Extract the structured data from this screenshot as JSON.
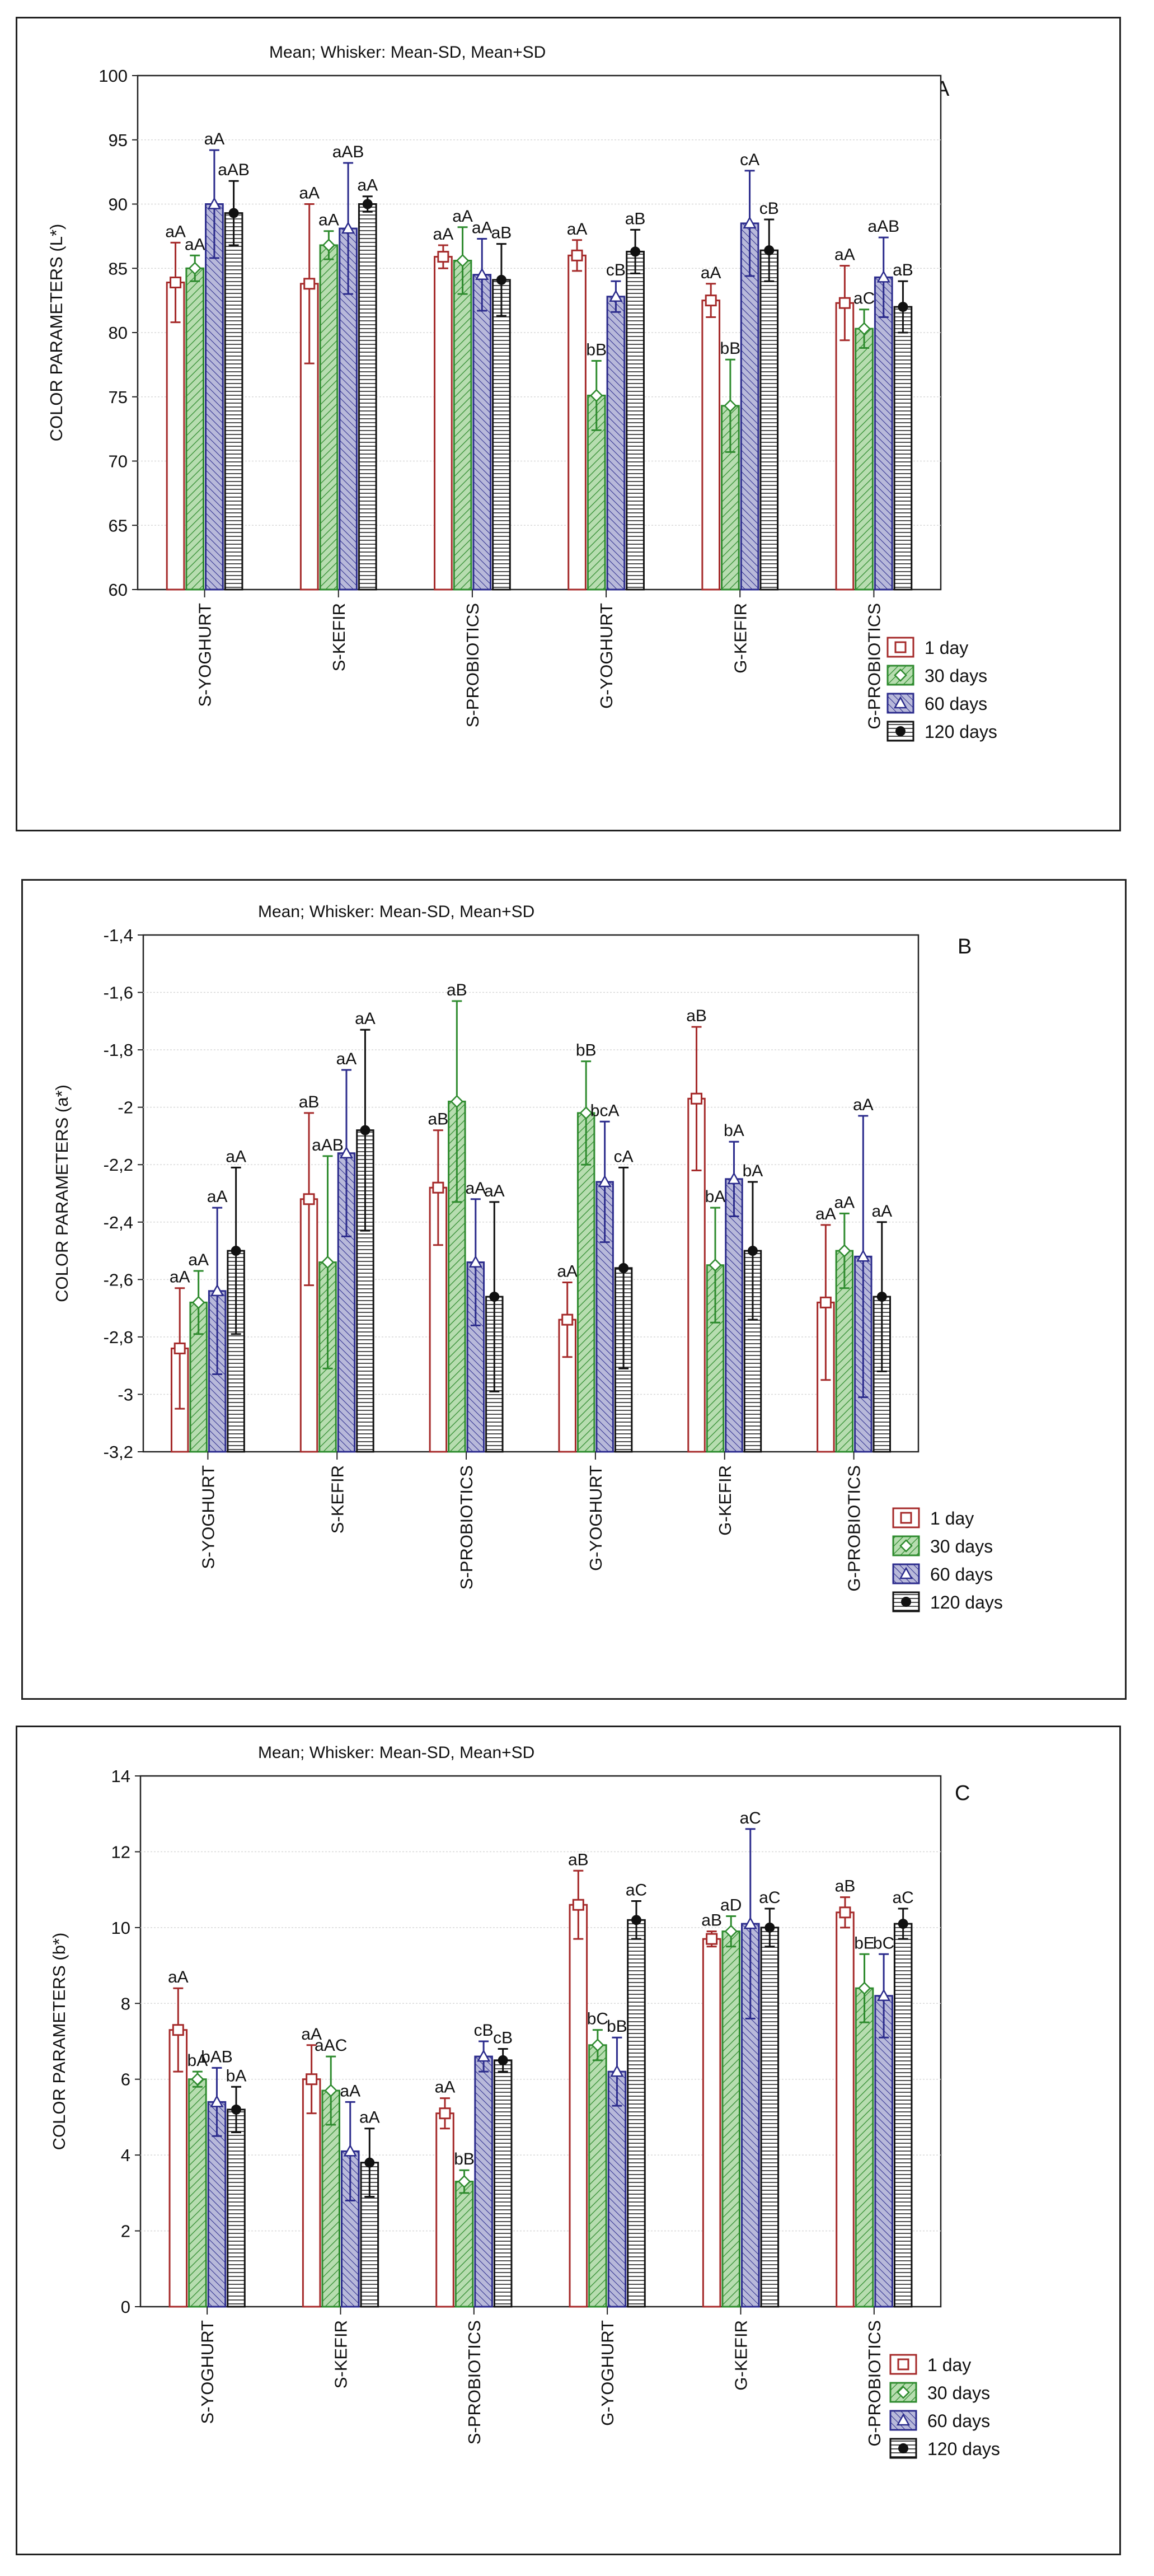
{
  "legend_labels": [
    "1 day",
    "30 days",
    "60 days",
    "120 days"
  ],
  "series_colors": [
    "#a52a2a",
    "#2e8b2e",
    "#2b2b8c",
    "#111111"
  ],
  "fill_colors": [
    "#ffffff",
    "#b7ddb0",
    "#b8b9da",
    "#ffffff"
  ],
  "chart_data": [
    {
      "type": "bar",
      "title": "Mean;  Whisker: Mean-SD, Mean+SD",
      "panel_label": "A",
      "ylabel": "COLOR PARAMETERS  (L*)",
      "ylim": [
        60,
        100
      ],
      "yticks": [
        "60",
        "65",
        "70",
        "75",
        "80",
        "85",
        "90",
        "95",
        "100"
      ],
      "categories": [
        "S-YOGHURT",
        "S-KEFIR",
        "S-PROBIOTICS",
        "G-YOGHURT",
        "G-KEFIR",
        "G-PROBIOTICS"
      ],
      "grid": true,
      "legend_position": "bottom-right",
      "series": [
        {
          "name": "1 day",
          "values": [
            83.9,
            83.8,
            85.9,
            86.0,
            82.5,
            82.3
          ],
          "sd": [
            3.1,
            6.2,
            0.9,
            1.2,
            1.3,
            2.9
          ],
          "labels": [
            "aA",
            "aA",
            "aA",
            "aA",
            "aA",
            "aA"
          ]
        },
        {
          "name": "30 days",
          "values": [
            85.0,
            86.8,
            85.6,
            75.1,
            74.3,
            80.3
          ],
          "sd": [
            1.0,
            1.1,
            2.6,
            2.7,
            3.6,
            1.5
          ],
          "labels": [
            "aA",
            "aA",
            "aA",
            "bB",
            "bB",
            "aC"
          ]
        },
        {
          "name": "60 days",
          "values": [
            90.0,
            88.1,
            84.5,
            82.8,
            88.5,
            84.3
          ],
          "sd": [
            4.2,
            5.1,
            2.8,
            1.2,
            4.1,
            3.1
          ],
          "labels": [
            "aA",
            "aAB",
            "aA",
            "cB",
            "cA",
            "aAB"
          ]
        },
        {
          "name": "120 days",
          "values": [
            89.3,
            90.0,
            84.1,
            86.3,
            86.4,
            82.0
          ],
          "sd": [
            2.5,
            0.6,
            2.8,
            1.7,
            2.4,
            2.0
          ],
          "labels": [
            "aAB",
            "aA",
            "aB",
            "aB",
            "cB",
            "aB"
          ]
        }
      ]
    },
    {
      "type": "bar",
      "title": "Mean;  Whisker: Mean-SD, Mean+SD",
      "panel_label": "B",
      "ylabel": "COLOR PARAMETERS  (a*)",
      "ylim": [
        -3.2,
        -1.4
      ],
      "yticks": [
        "-3,2",
        "-3",
        "-2,8",
        "-2,6",
        "-2,4",
        "-2,2",
        "-2",
        "-1,8",
        "-1,6",
        "-1,4"
      ],
      "categories": [
        "S-YOGHURT",
        "S-KEFIR",
        "S-PROBIOTICS",
        "G-YOGHURT",
        "G-KEFIR",
        "G-PROBIOTICS"
      ],
      "grid": true,
      "legend_position": "bottom-right",
      "series": [
        {
          "name": "1 day",
          "values": [
            -2.84,
            -2.32,
            -2.28,
            -2.74,
            -1.97,
            -2.68
          ],
          "sd": [
            0.21,
            0.3,
            0.2,
            0.13,
            0.25,
            0.27
          ],
          "labels": [
            "aA",
            "aB",
            "aB",
            "aA",
            "aB",
            "aA"
          ]
        },
        {
          "name": "30 days",
          "values": [
            -2.68,
            -2.54,
            -1.98,
            -2.02,
            -2.55,
            -2.5
          ],
          "sd": [
            0.11,
            0.37,
            0.35,
            0.18,
            0.2,
            0.13
          ],
          "labels": [
            "aA",
            "aAB",
            "aB",
            "bB",
            "bA",
            "aA"
          ]
        },
        {
          "name": "60 days",
          "values": [
            -2.64,
            -2.16,
            -2.54,
            -2.26,
            -2.25,
            -2.52
          ],
          "sd": [
            0.29,
            0.29,
            0.22,
            0.21,
            0.13,
            0.49
          ],
          "labels": [
            "aA",
            "aA",
            "aA",
            "bcA",
            "bA",
            "aA"
          ]
        },
        {
          "name": "120 days",
          "values": [
            -2.5,
            -2.08,
            -2.66,
            -2.56,
            -2.5,
            -2.66
          ],
          "sd": [
            0.29,
            0.35,
            0.33,
            0.35,
            0.24,
            0.26
          ],
          "labels": [
            "aA",
            "aA",
            "aA",
            "cA",
            "bA",
            "aA"
          ]
        }
      ]
    },
    {
      "type": "bar",
      "title": "Mean;  Whisker: Mean-SD, Mean+SD",
      "panel_label": "C",
      "ylabel": "COLOR PARAMETERS  (b*)",
      "ylim": [
        0,
        14
      ],
      "yticks": [
        "0",
        "2",
        "4",
        "6",
        "8",
        "10",
        "12",
        "14"
      ],
      "categories": [
        "S-YOGHURT",
        "S-KEFIR",
        "S-PROBIOTICS",
        "G-YOGHURT",
        "G-KEFIR",
        "G-PROBIOTICS"
      ],
      "grid": true,
      "legend_position": "bottom-right",
      "series": [
        {
          "name": "1 day",
          "values": [
            7.3,
            6.0,
            5.1,
            10.6,
            9.7,
            10.4
          ],
          "sd": [
            1.1,
            0.9,
            0.4,
            0.9,
            0.2,
            0.4
          ],
          "labels": [
            "aA",
            "aA",
            "aA",
            "aB",
            "aB",
            "aB"
          ]
        },
        {
          "name": "30 days",
          "values": [
            6.0,
            5.7,
            3.3,
            6.9,
            9.9,
            8.4
          ],
          "sd": [
            0.2,
            0.9,
            0.3,
            0.4,
            0.4,
            0.9
          ],
          "labels": [
            "bA",
            "aAC",
            "bB",
            "bC",
            "aD",
            "bE"
          ]
        },
        {
          "name": "60 days",
          "values": [
            5.4,
            4.1,
            6.6,
            6.2,
            10.1,
            8.2
          ],
          "sd": [
            0.9,
            1.3,
            0.4,
            0.9,
            2.5,
            1.1
          ],
          "labels": [
            "bAB",
            "aA",
            "cB",
            "bB",
            "aC",
            "bC"
          ]
        },
        {
          "name": "120 days",
          "values": [
            5.2,
            3.8,
            6.5,
            10.2,
            10.0,
            10.1
          ],
          "sd": [
            0.6,
            0.9,
            0.3,
            0.5,
            0.5,
            0.4
          ],
          "labels": [
            "bA",
            "aA",
            "cB",
            "aC",
            "aC",
            "aC"
          ]
        }
      ]
    }
  ]
}
